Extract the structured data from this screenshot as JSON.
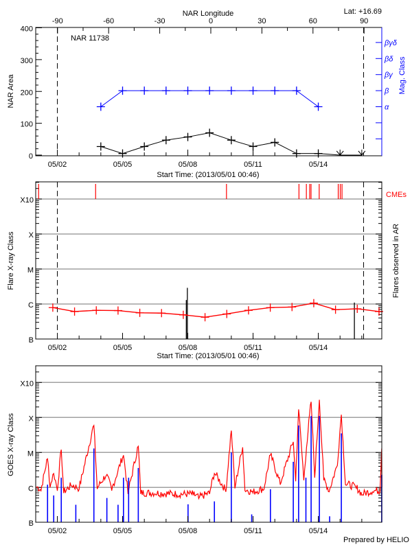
{
  "footer": "Prepared by HELIO",
  "colors": {
    "area": "#000000",
    "mag_class": "#0000ff",
    "flare": "#ff0000",
    "cme": "#ff0000",
    "goes_long": "#ff0000",
    "goes_short": "#0000ff",
    "grid": "#a0a0a0",
    "ar_flares": "#000000"
  },
  "chart_data": [
    {
      "type": "line",
      "title": "NAR 11738",
      "annotation": "Lat: +16.69",
      "top_xlabel": "NAR Longitude",
      "top_ticks": [
        -90,
        -60,
        -30,
        0,
        30,
        60,
        90
      ],
      "xlabel": "Start Time: (2013/05/01 00:46)",
      "xlim": [
        "2013-05-01 00:46",
        "2013-05-16 22:10"
      ],
      "x_ticks": [
        "05/02",
        "05/05",
        "05/08",
        "05/11",
        "05/14"
      ],
      "ylabel": "NAR Area",
      "ylim": [
        0,
        400
      ],
      "yticks": [
        0,
        100,
        200,
        300,
        400
      ],
      "ylabel_right": "Mag. Class",
      "mag_classes": [
        "α",
        "β",
        "βγ",
        "βδ",
        "βγδ"
      ],
      "limb_lines": [
        "2013-05-02 00:00",
        "2013-05-16 02:00"
      ],
      "series": [
        {
          "kind": "area",
          "x": [
            "2013-05-04 00:00",
            "2013-05-05 00:00",
            "2013-05-06 00:00",
            "2013-05-07 00:00",
            "2013-05-08 00:00",
            "2013-05-09 00:00",
            "2013-05-10 00:00",
            "2013-05-11 00:00",
            "2013-05-12 00:00",
            "2013-05-13 00:00",
            "2013-05-14 00:00",
            "2013-05-15 00:00",
            "2013-05-16 00:00"
          ],
          "values": [
            27,
            5,
            27,
            47,
            57,
            70,
            47,
            27,
            40,
            5,
            5,
            0,
            0
          ]
        },
        {
          "kind": "mag_class",
          "x": [
            "2013-05-04 00:00",
            "2013-05-05 00:00",
            "2013-05-06 00:00",
            "2013-05-07 00:00",
            "2013-05-08 00:00",
            "2013-05-09 00:00",
            "2013-05-10 00:00",
            "2013-05-11 00:00",
            "2013-05-12 00:00",
            "2013-05-13 00:00",
            "2013-05-14 00:00"
          ],
          "values": [
            "α",
            "β",
            "β",
            "β",
            "β",
            "β",
            "β",
            "β",
            "β",
            "β",
            "α"
          ]
        }
      ]
    },
    {
      "type": "line",
      "xlabel": "Start Time: (2013/05/01 00:46)",
      "xlim": [
        "2013-05-01 00:46",
        "2013-05-16 22:10"
      ],
      "x_ticks": [
        "05/02",
        "05/05",
        "05/08",
        "05/11",
        "05/14"
      ],
      "ylabel": "Flare X-ray Class",
      "ylabel_right": "Flares observed in AR",
      "y_scale": "log",
      "ylim": [
        1e-07,
        0.0003
      ],
      "class_ticks": [
        {
          "label": "X10",
          "flux": 0.001
        },
        {
          "label": "X",
          "flux": 0.0001
        },
        {
          "label": "M",
          "flux": 1e-05
        },
        {
          "label": "C",
          "flux": 1e-06
        },
        {
          "label": "B",
          "flux": 1e-07
        }
      ],
      "cme_label": "CMEs",
      "limb_lines": [
        "2013-05-02 00:00",
        "2013-05-16 02:00"
      ],
      "cmes": [
        "2013-05-01 03:20",
        "2013-05-03 18:15",
        "2013-05-09 18:40",
        "2013-05-13 02:40",
        "2013-05-13 10:50",
        "2013-05-13 14:30",
        "2013-05-13 16:00",
        "2013-05-14 01:00",
        "2013-05-14 22:00",
        "2013-05-15 00:15",
        "2013-05-15 02:10"
      ],
      "daily_flare_level": {
        "x": [
          "2013-05-01 19:00",
          "2013-05-02 19:00",
          "2013-05-03 19:00",
          "2013-05-04 19:00",
          "2013-05-05 19:00",
          "2013-05-06 19:00",
          "2013-05-07 19:00",
          "2013-05-08 19:00",
          "2013-05-09 19:00",
          "2013-05-10 19:00",
          "2013-05-11 19:00",
          "2013-05-12 19:00",
          "2013-05-13 19:00",
          "2013-05-14 19:00",
          "2013-05-15 19:00",
          "2013-05-16 19:00"
        ],
        "values": [
          7.9e-07,
          6.1e-07,
          6.6e-07,
          6.5e-07,
          5.6e-07,
          5.5e-07,
          4.9e-07,
          4.2e-07,
          5.2e-07,
          6.6e-07,
          7.9e-07,
          8.2e-07,
          1.06e-06,
          6.9e-07,
          7.3e-07,
          6.1e-07
        ]
      },
      "ar_flares": [
        [
          "2013-05-07 22:20",
          1.3e-06
        ],
        [
          "2013-05-07 23:30",
          2.9e-06
        ],
        [
          "2013-05-15 15:50",
          1.1e-06
        ]
      ]
    },
    {
      "type": "line",
      "xlim": [
        "2013-05-01 00:46",
        "2013-05-16 22:10"
      ],
      "x_ticks": [
        "05/02",
        "05/05",
        "05/08",
        "05/11",
        "05/14"
      ],
      "ylabel": "GOES X-ray Class",
      "y_scale": "log",
      "class_ticks": [
        {
          "label": "X10",
          "flux": 0.001
        },
        {
          "label": "X",
          "flux": 0.0001
        },
        {
          "label": "M",
          "flux": 1e-05
        },
        {
          "label": "C",
          "flux": 1e-06
        },
        {
          "label": "B",
          "flux": 1e-07
        }
      ],
      "series": [
        {
          "kind": "goes_long",
          "points": [
            [
              "2013-05-01 00:46",
              1e-06
            ],
            [
              "2013-05-01 06:00",
              8e-07
            ],
            [
              "2013-05-01 13:10",
              6.6e-06
            ],
            [
              "2013-05-01 16:00",
              1e-06
            ],
            [
              "2013-05-01 20:00",
              2.5e-06
            ],
            [
              "2013-05-02 00:00",
              8e-07
            ],
            [
              "2013-05-02 04:20",
              1.2e-05
            ],
            [
              "2013-05-02 07:00",
              6.9e-07
            ],
            [
              "2013-05-02 16:00",
              1.1e-06
            ],
            [
              "2013-05-03 00:00",
              8.7e-07
            ],
            [
              "2013-05-03 16:20",
              5.9e-05
            ],
            [
              "2013-05-03 20:00",
              9e-07
            ],
            [
              "2013-05-04 06:00",
              2.2e-06
            ],
            [
              "2013-05-04 12:00",
              8.1e-07
            ],
            [
              "2013-05-05 01:00",
              8.3e-06
            ],
            [
              "2013-05-05 06:00",
              6.5e-07
            ],
            [
              "2013-05-05 17:20",
              1.5e-05
            ],
            [
              "2013-05-05 20:00",
              6.5e-07
            ],
            [
              "2013-05-06 12:00",
              6.5e-07
            ],
            [
              "2013-05-07 12:00",
              6e-07
            ],
            [
              "2013-05-08 06:00",
              6e-07
            ],
            [
              "2013-05-08 12:00",
              4.8e-07
            ],
            [
              "2013-05-09 00:00",
              6.5e-07
            ],
            [
              "2013-05-09 05:20",
              2.5e-06
            ],
            [
              "2013-05-09 18:00",
              7.5e-07
            ],
            [
              "2013-05-10 00:00",
              4.2e-05
            ],
            [
              "2013-05-10 04:00",
              9.4e-07
            ],
            [
              "2013-05-10 12:30",
              1.4e-05
            ],
            [
              "2013-05-10 15:00",
              8.1e-07
            ],
            [
              "2013-05-11 00:00",
              6.9e-07
            ],
            [
              "2013-05-11 12:00",
              8.7e-07
            ],
            [
              "2013-05-11 19:10",
              8.3e-06
            ],
            [
              "2013-05-12 06:00",
              1.2e-06
            ],
            [
              "2013-05-12 20:24",
              2e-05
            ],
            [
              "2013-05-12 23:00",
              1.5e-06
            ],
            [
              "2013-05-13 02:17",
              0.00017
            ],
            [
              "2013-05-13 08:00",
              1.6e-06
            ],
            [
              "2013-05-13 11:00",
              1.4e-05
            ],
            [
              "2013-05-13 16:05",
              0.00028
            ],
            [
              "2013-05-13 20:00",
              1.9e-06
            ],
            [
              "2013-05-14 01:11",
              0.00032
            ],
            [
              "2013-05-14 06:00",
              1.6e-06
            ],
            [
              "2013-05-14 12:00",
              7.5e-07
            ],
            [
              "2013-05-14 21:00",
              4.2e-06
            ],
            [
              "2013-05-15 01:25",
              0.00012
            ],
            [
              "2013-05-15 06:00",
              1.2e-06
            ],
            [
              "2013-05-15 18:00",
              9.4e-07
            ],
            [
              "2013-05-16 00:00",
              6e-07
            ],
            [
              "2013-05-16 12:00",
              7.5e-07
            ],
            [
              "2013-05-16 20:00",
              7.5e-07
            ],
            [
              "2013-05-16 22:00",
              1.3e-05
            ],
            [
              "2013-05-16 22:10",
              1e-06
            ]
          ]
        },
        {
          "kind": "goes_short",
          "points": [
            [
              "2013-05-01 13:12",
              1.2e-06
            ],
            [
              "2013-05-01 20:00",
              5.9e-07
            ],
            [
              "2013-05-02 04:20",
              1.9e-06
            ],
            [
              "2013-05-02 20:24",
              3.2e-07
            ],
            [
              "2013-05-03 16:20",
              1.3e-05
            ],
            [
              "2013-05-04 06:40",
              5e-07
            ],
            [
              "2013-05-04 19:00",
              3.2e-07
            ],
            [
              "2013-05-05 01:00",
              1.9e-06
            ],
            [
              "2013-05-05 06:40",
              1.9e-06
            ],
            [
              "2013-05-05 17:20",
              3.6e-06
            ],
            [
              "2013-05-08 00:15",
              3.3e-07
            ],
            [
              "2013-05-09 05:20",
              4e-07
            ],
            [
              "2013-05-10 00:00",
              1e-05
            ],
            [
              "2013-05-10 22:30",
              1.7e-07
            ],
            [
              "2013-05-11 19:10",
              8.9e-07
            ],
            [
              "2013-05-12 20:24",
              5.4e-06
            ],
            [
              "2013-05-13 02:17",
              5.9e-05
            ],
            [
              "2013-05-13 10:20",
              1.9e-06
            ],
            [
              "2013-05-13 16:05",
              0.00011
            ],
            [
              "2013-05-14 01:11",
              0.00011
            ],
            [
              "2013-05-14 12:30",
              1.5e-07
            ],
            [
              "2013-05-15 01:25",
              3.5e-05
            ],
            [
              "2013-05-16 22:00",
              2.3e-06
            ]
          ]
        }
      ]
    }
  ]
}
